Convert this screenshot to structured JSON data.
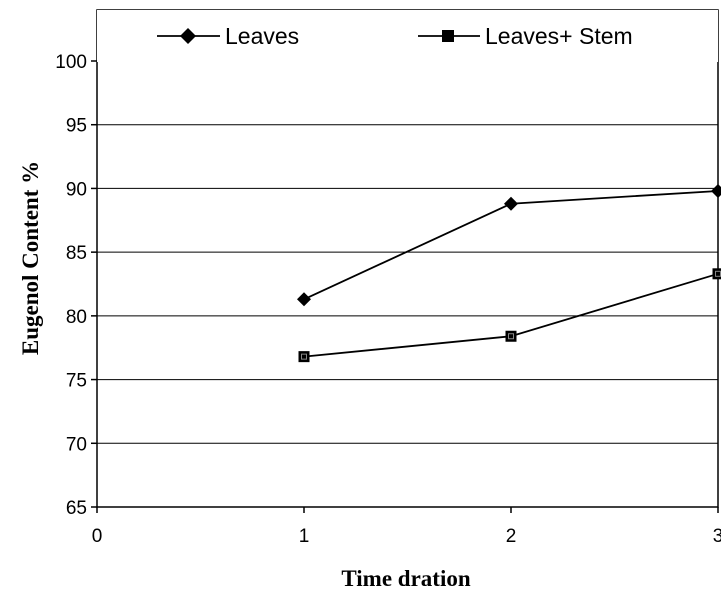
{
  "chart_data": {
    "type": "line",
    "title": "",
    "xlabel": "Time dration",
    "ylabel": "Eugenol Content %",
    "xlim": [
      0,
      3
    ],
    "ylim": [
      65,
      100
    ],
    "x_ticks": [
      "0",
      "1",
      "2",
      "3"
    ],
    "y_ticks": [
      "65",
      "70",
      "75",
      "80",
      "85",
      "90",
      "95",
      "100"
    ],
    "grid": "horizontal",
    "legend_position": "top",
    "series": [
      {
        "name": "Leaves",
        "marker": "diamond",
        "x": [
          1,
          2,
          3
        ],
        "values": [
          81.3,
          88.8,
          89.8
        ]
      },
      {
        "name": "Leaves+ Stem",
        "marker": "square",
        "x": [
          1,
          2,
          3
        ],
        "values": [
          76.8,
          78.4,
          83.3
        ]
      }
    ]
  }
}
